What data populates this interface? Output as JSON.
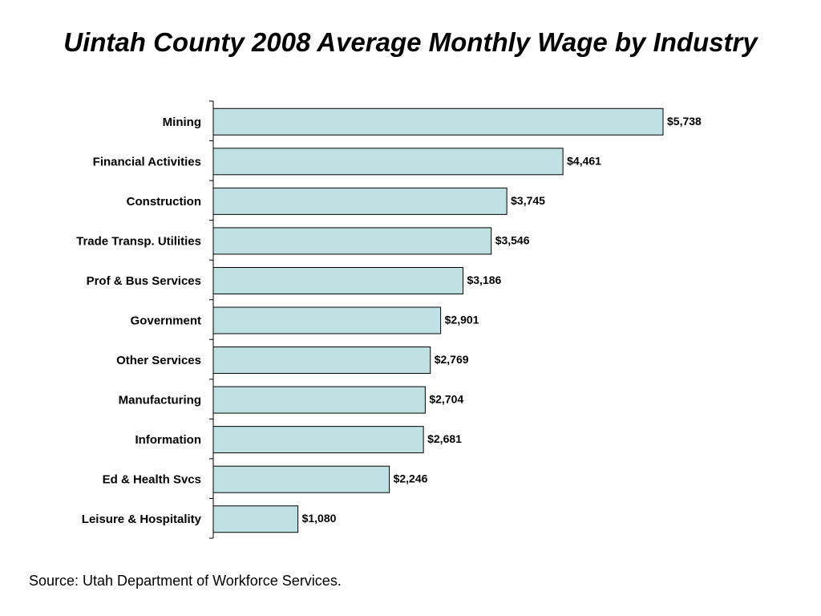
{
  "title": "Uintah County 2008 Average Monthly Wage by Industry",
  "source": "Source: Utah Department of Workforce Services.",
  "colors": {
    "bar_fill": "#bfe1e4",
    "bar_stroke": "#000000",
    "axis": "#000000"
  },
  "chart_data": {
    "type": "bar",
    "orientation": "horizontal",
    "title": "Uintah County 2008 Average Monthly Wage by Industry",
    "xlabel": "",
    "ylabel": "",
    "grid": false,
    "categories": [
      "Mining",
      "Financial Activities",
      "Construction",
      "Trade Transp. Utilities",
      "Prof & Bus Services",
      "Government",
      "Other Services",
      "Manufacturing",
      "Information",
      "Ed & Health Svcs",
      "Leisure & Hospitality"
    ],
    "values": [
      5738,
      4461,
      3745,
      3546,
      3186,
      2901,
      2769,
      2704,
      2681,
      2246,
      1080
    ],
    "value_labels": [
      "$5,738",
      "$4,461",
      "$3,745",
      "$3,546",
      "$3,186",
      "$2,901",
      "$2,769",
      "$2,704",
      "$2,681",
      "$2,246",
      "$1,080"
    ]
  }
}
